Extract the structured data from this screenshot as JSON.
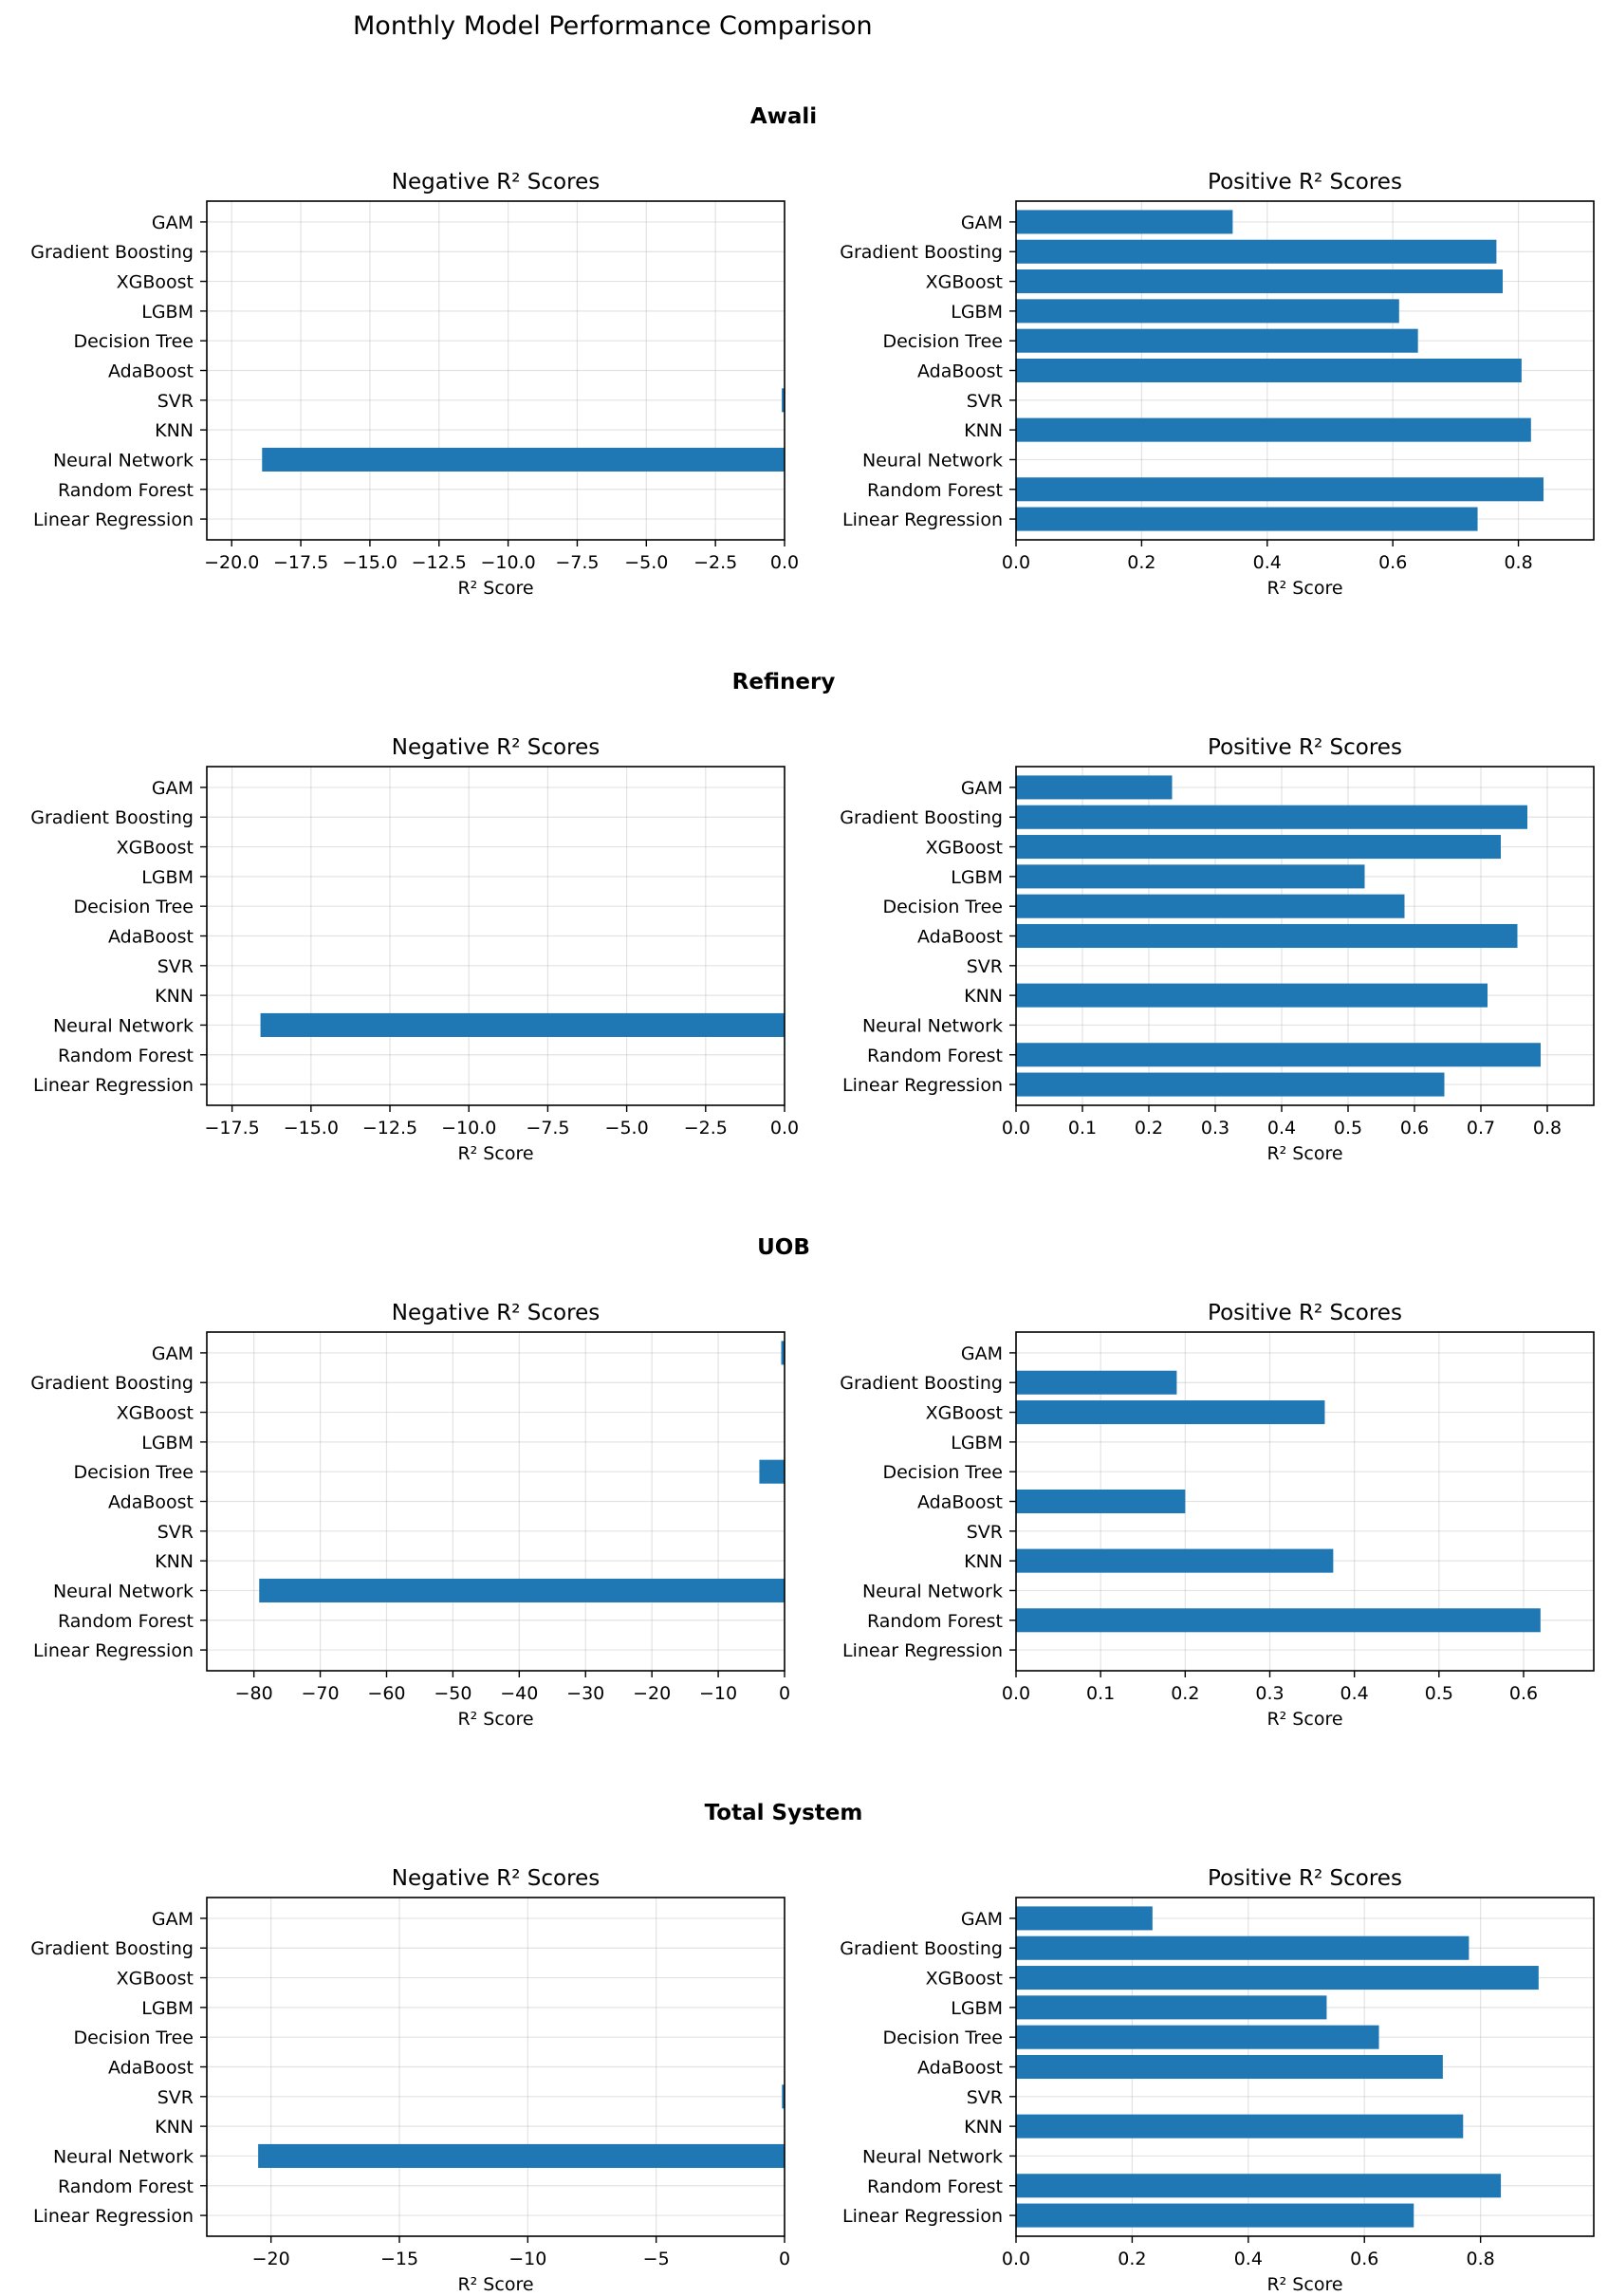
{
  "figure": {
    "title": "Monthly Model Performance Comparison"
  },
  "chart_data": [
    {
      "section": "Awali",
      "panels": [
        {
          "type": "bar",
          "orientation": "horizontal",
          "title": "Negative R² Scores",
          "xlabel": "R² Score",
          "categories": [
            "GAM",
            "Gradient Boosting",
            "XGBoost",
            "LGBM",
            "Decision Tree",
            "AdaBoost",
            "SVR",
            "KNN",
            "Neural Network",
            "Random Forest",
            "Linear Regression"
          ],
          "values": [
            0,
            0,
            0,
            0,
            0,
            0,
            -0.1,
            0,
            -18.9,
            0,
            0
          ],
          "xlim": [
            -20.9,
            0
          ],
          "xticks": [
            -20.0,
            -17.5,
            -15.0,
            -12.5,
            -10.0,
            -7.5,
            -5.0,
            -2.5,
            0.0
          ],
          "xtick_labels": [
            "−20.0",
            "−17.5",
            "−15.0",
            "−12.5",
            "−10.0",
            "−7.5",
            "−5.0",
            "−2.5",
            "0.0"
          ],
          "grid": true
        },
        {
          "type": "bar",
          "orientation": "horizontal",
          "title": "Positive R² Scores",
          "xlabel": "R² Score",
          "categories": [
            "GAM",
            "Gradient Boosting",
            "XGBoost",
            "LGBM",
            "Decision Tree",
            "AdaBoost",
            "SVR",
            "KNN",
            "Neural Network",
            "Random Forest",
            "Linear Regression"
          ],
          "values": [
            0.345,
            0.765,
            0.775,
            0.61,
            0.64,
            0.805,
            0,
            0.82,
            0,
            0.84,
            0.735
          ],
          "xlim": [
            0,
            0.92
          ],
          "xticks": [
            0,
            0.2,
            0.4,
            0.6,
            0.8
          ],
          "xtick_labels": [
            "0.0",
            "0.2",
            "0.4",
            "0.6",
            "0.8"
          ],
          "grid": true
        }
      ]
    },
    {
      "section": "Refinery",
      "panels": [
        {
          "type": "bar",
          "orientation": "horizontal",
          "title": "Negative R² Scores",
          "xlabel": "R² Score",
          "categories": [
            "GAM",
            "Gradient Boosting",
            "XGBoost",
            "LGBM",
            "Decision Tree",
            "AdaBoost",
            "SVR",
            "KNN",
            "Neural Network",
            "Random Forest",
            "Linear Regression"
          ],
          "values": [
            0,
            0,
            0,
            0,
            0,
            0,
            0,
            0,
            -16.6,
            0,
            0
          ],
          "xlim": [
            -18.3,
            0
          ],
          "xticks": [
            -17.5,
            -15.0,
            -12.5,
            -10.0,
            -7.5,
            -5.0,
            -2.5,
            0.0
          ],
          "xtick_labels": [
            "−17.5",
            "−15.0",
            "−12.5",
            "−10.0",
            "−7.5",
            "−5.0",
            "−2.5",
            "0.0"
          ],
          "grid": true
        },
        {
          "type": "bar",
          "orientation": "horizontal",
          "title": "Positive R² Scores",
          "xlabel": "R² Score",
          "categories": [
            "GAM",
            "Gradient Boosting",
            "XGBoost",
            "LGBM",
            "Decision Tree",
            "AdaBoost",
            "SVR",
            "KNN",
            "Neural Network",
            "Random Forest",
            "Linear Regression"
          ],
          "values": [
            0.235,
            0.77,
            0.73,
            0.525,
            0.585,
            0.755,
            0,
            0.71,
            0,
            0.79,
            0.645
          ],
          "xlim": [
            0,
            0.87
          ],
          "xticks": [
            0,
            0.1,
            0.2,
            0.3,
            0.4,
            0.5,
            0.6,
            0.7,
            0.8
          ],
          "xtick_labels": [
            "0.0",
            "0.1",
            "0.2",
            "0.3",
            "0.4",
            "0.5",
            "0.6",
            "0.7",
            "0.8"
          ],
          "grid": true
        }
      ]
    },
    {
      "section": "UOB",
      "panels": [
        {
          "type": "bar",
          "orientation": "horizontal",
          "title": "Negative R² Scores",
          "xlabel": "R² Score",
          "categories": [
            "GAM",
            "Gradient Boosting",
            "XGBoost",
            "LGBM",
            "Decision Tree",
            "AdaBoost",
            "SVR",
            "KNN",
            "Neural Network",
            "Random Forest",
            "Linear Regression"
          ],
          "values": [
            -0.5,
            0,
            0,
            0,
            -3.8,
            0,
            0,
            0,
            -79.2,
            0,
            0
          ],
          "xlim": [
            -87.1,
            0
          ],
          "xticks": [
            -80,
            -70,
            -60,
            -50,
            -40,
            -30,
            -20,
            -10,
            0
          ],
          "xtick_labels": [
            "−80",
            "−70",
            "−60",
            "−50",
            "−40",
            "−30",
            "−20",
            "−10",
            "0"
          ],
          "grid": true
        },
        {
          "type": "bar",
          "orientation": "horizontal",
          "title": "Positive R² Scores",
          "xlabel": "R² Score",
          "categories": [
            "GAM",
            "Gradient Boosting",
            "XGBoost",
            "LGBM",
            "Decision Tree",
            "AdaBoost",
            "SVR",
            "KNN",
            "Neural Network",
            "Random Forest",
            "Linear Regression"
          ],
          "values": [
            0,
            0.19,
            0.365,
            0,
            0,
            0.2,
            0,
            0.375,
            0,
            0.62,
            0
          ],
          "xlim": [
            0,
            0.683
          ],
          "xticks": [
            0,
            0.1,
            0.2,
            0.3,
            0.4,
            0.5,
            0.6
          ],
          "xtick_labels": [
            "0.0",
            "0.1",
            "0.2",
            "0.3",
            "0.4",
            "0.5",
            "0.6"
          ],
          "grid": true
        }
      ]
    },
    {
      "section": "Total System",
      "panels": [
        {
          "type": "bar",
          "orientation": "horizontal",
          "title": "Negative R² Scores",
          "xlabel": "R² Score",
          "categories": [
            "GAM",
            "Gradient Boosting",
            "XGBoost",
            "LGBM",
            "Decision Tree",
            "AdaBoost",
            "SVR",
            "KNN",
            "Neural Network",
            "Random Forest",
            "Linear Regression"
          ],
          "values": [
            0,
            0,
            0,
            0,
            0,
            0,
            -0.1,
            0,
            -20.5,
            0,
            0
          ],
          "xlim": [
            -22.5,
            0
          ],
          "xticks": [
            -20,
            -15,
            -10,
            -5,
            0
          ],
          "xtick_labels": [
            "−20",
            "−15",
            "−10",
            "−5",
            "0"
          ],
          "grid": true
        },
        {
          "type": "bar",
          "orientation": "horizontal",
          "title": "Positive R² Scores",
          "xlabel": "R² Score",
          "categories": [
            "GAM",
            "Gradient Boosting",
            "XGBoost",
            "LGBM",
            "Decision Tree",
            "AdaBoost",
            "SVR",
            "KNN",
            "Neural Network",
            "Random Forest",
            "Linear Regression"
          ],
          "values": [
            0.235,
            0.78,
            0.9,
            0.535,
            0.625,
            0.735,
            0,
            0.77,
            0,
            0.835,
            0.685
          ],
          "xlim": [
            0,
            0.995
          ],
          "xticks": [
            0,
            0.2,
            0.4,
            0.6,
            0.8
          ],
          "xtick_labels": [
            "0.0",
            "0.2",
            "0.4",
            "0.6",
            "0.8"
          ],
          "grid": true
        }
      ]
    }
  ]
}
